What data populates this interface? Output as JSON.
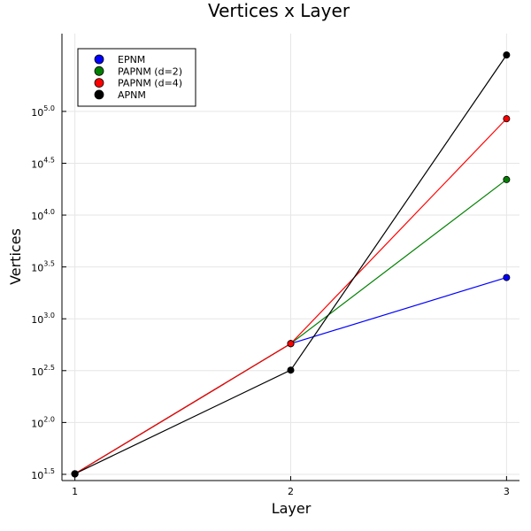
{
  "chart_data": {
    "type": "line",
    "title": "Vertices x Layer",
    "xlabel": "Layer",
    "ylabel": "Vertices",
    "x": [
      1,
      2,
      3
    ],
    "xlim": [
      0.94,
      3.06
    ],
    "x_ticks": [
      "1",
      "2",
      "3"
    ],
    "y_scale": "log10",
    "ylim_exponent": [
      1.44,
      5.75
    ],
    "y_ticks": [
      {
        "exp": 1.5,
        "base": "10",
        "sup": "1.5"
      },
      {
        "exp": 2.0,
        "base": "10",
        "sup": "2.0"
      },
      {
        "exp": 2.5,
        "base": "10",
        "sup": "2.5"
      },
      {
        "exp": 3.0,
        "base": "10",
        "sup": "3.0"
      },
      {
        "exp": 3.5,
        "base": "10",
        "sup": "3.5"
      },
      {
        "exp": 4.0,
        "base": "10",
        "sup": "4.0"
      },
      {
        "exp": 4.5,
        "base": "10",
        "sup": "4.5"
      },
      {
        "exp": 5.0,
        "base": "10",
        "sup": "5.0"
      }
    ],
    "grid": true,
    "legend_position": "top-left",
    "series": [
      {
        "name": "EPNM",
        "color": "#0000ff",
        "values": [
          32,
          576,
          2500
        ]
      },
      {
        "name": "PAPNM (d=2)",
        "color": "#008000",
        "values": [
          32,
          576,
          22000
        ]
      },
      {
        "name": "PAPNM (d=4)",
        "color": "#ff0000",
        "values": [
          32,
          576,
          85000
        ]
      },
      {
        "name": "APNM",
        "color": "#000000",
        "values": [
          32,
          320,
          350000
        ]
      }
    ]
  }
}
